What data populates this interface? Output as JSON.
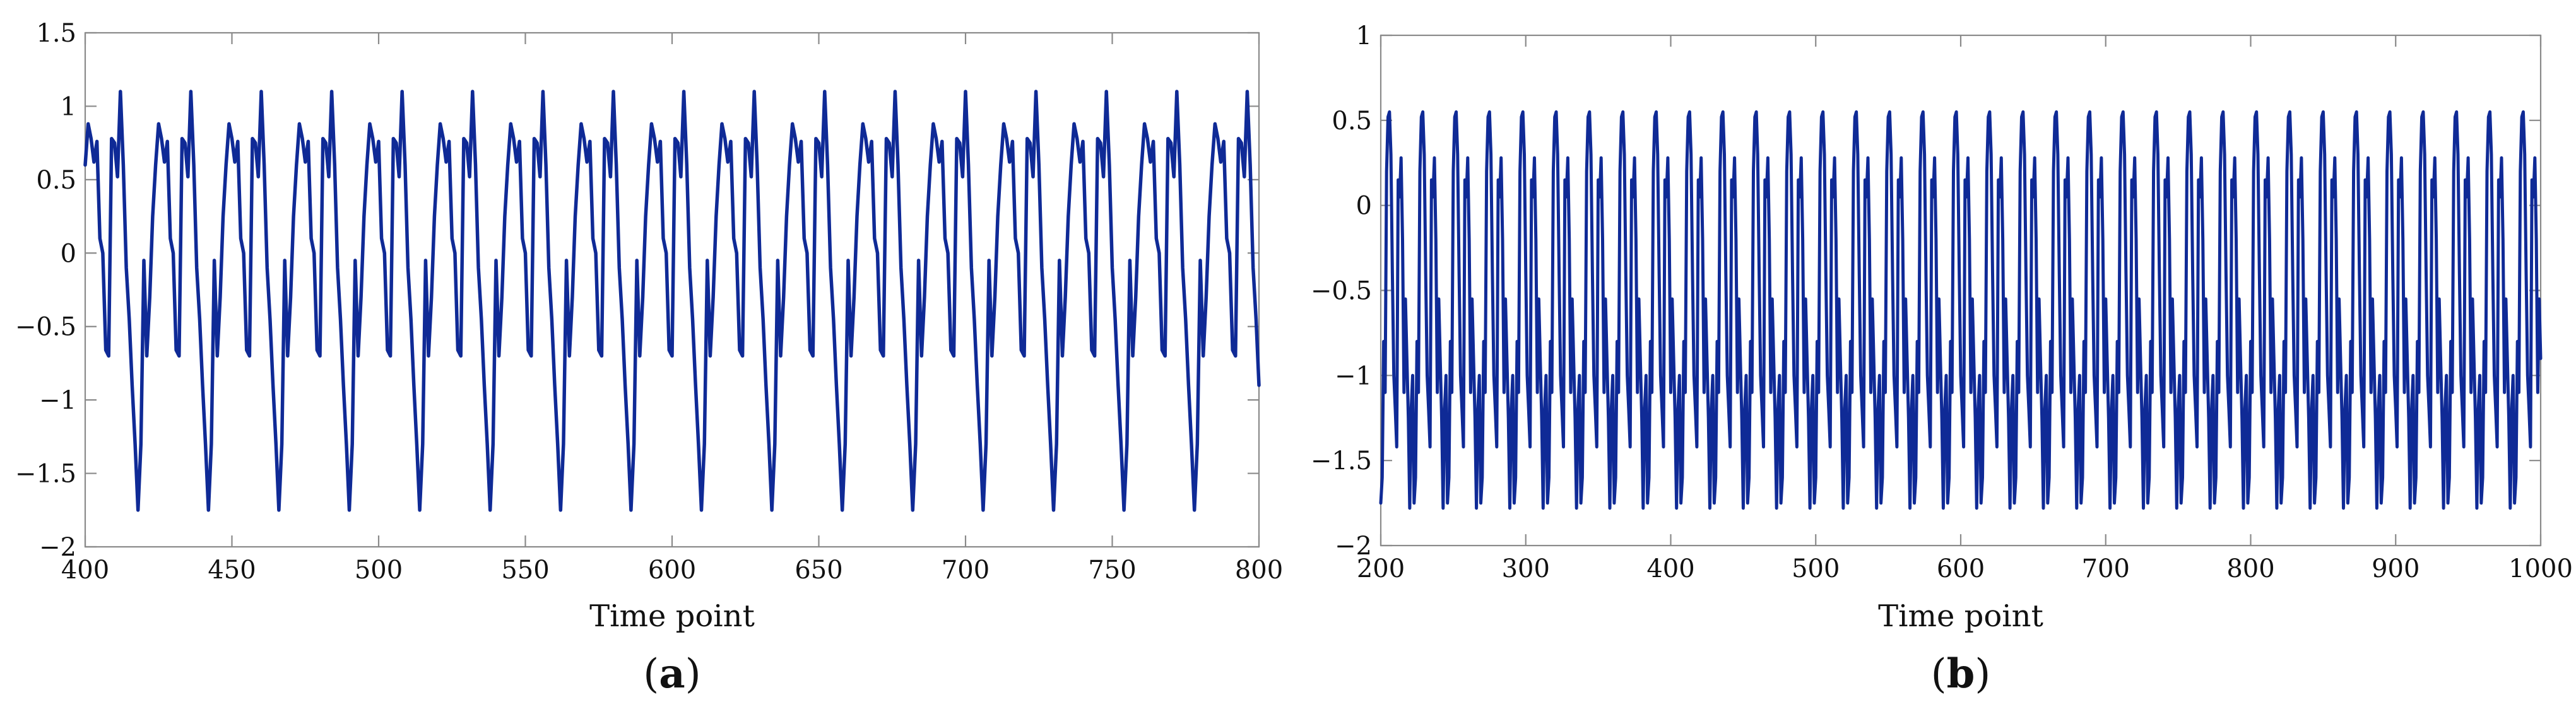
{
  "colors": {
    "series": "#0f2a96",
    "axis": "#8a8a8a",
    "text": "#111111"
  },
  "chart_data": [
    {
      "type": "line",
      "panel_label": "(a)",
      "panel_letter": "a",
      "xlabel": "Time point",
      "ylabel": "",
      "xlim": [
        400,
        800
      ],
      "ylim": [
        -2,
        1.5
      ],
      "x_ticks": [
        400,
        450,
        500,
        550,
        600,
        650,
        700,
        750,
        800
      ],
      "x_tick_labels": [
        "400",
        "450",
        "500",
        "550",
        "600",
        "650",
        "700",
        "750",
        "800"
      ],
      "y_ticks": [
        1.5,
        1,
        0.5,
        0,
        -0.5,
        -1,
        -1.5,
        -2
      ],
      "y_tick_labels": [
        "1.5",
        "1",
        "0.5",
        "0",
        "−0.5",
        "−1",
        "−1.5",
        "−2"
      ],
      "grid": false,
      "series": [
        {
          "period": 24,
          "x_start": 400,
          "x_end": 800,
          "phase_x": 401,
          "cycle_y": [
            0.88,
            0.78,
            0.62,
            0.76,
            0.1,
            0.0,
            -0.66,
            -0.7,
            0.78,
            0.75,
            0.52,
            1.1,
            0.6,
            -0.1,
            -0.45,
            -0.9,
            -1.3,
            -1.75,
            -1.3,
            -0.05,
            -0.7,
            -0.3,
            0.25,
            0.6
          ]
        }
      ]
    },
    {
      "type": "line",
      "panel_label": "(b)",
      "panel_letter": "b",
      "xlabel": "Time point",
      "ylabel": "",
      "xlim": [
        200,
        1000
      ],
      "ylim": [
        -2,
        1
      ],
      "x_ticks": [
        200,
        300,
        400,
        500,
        600,
        700,
        800,
        900,
        1000
      ],
      "x_tick_labels": [
        "200",
        "300",
        "400",
        "500",
        "600",
        "700",
        "800",
        "900",
        "1000"
      ],
      "y_ticks": [
        1,
        0.5,
        0,
        -0.5,
        -1,
        -1.5,
        -2
      ],
      "y_tick_labels": [
        "1",
        "0.5",
        "0",
        "−0.5",
        "−1",
        "−1.5",
        "−2"
      ],
      "grid": false,
      "series": [
        {
          "period": 23,
          "x_start": 200,
          "x_end": 1000,
          "phase_x": 200,
          "cycle_y": [
            -1.75,
            -1.6,
            -0.8,
            -1.1,
            0.2,
            0.52,
            0.55,
            0.3,
            -0.4,
            -1.0,
            -1.2,
            -1.42,
            0.15,
            0.05,
            0.28,
            -0.2,
            -1.1,
            -0.55,
            -0.9,
            -1.25,
            -1.78,
            -1.2,
            -1.0
          ]
        }
      ]
    }
  ]
}
